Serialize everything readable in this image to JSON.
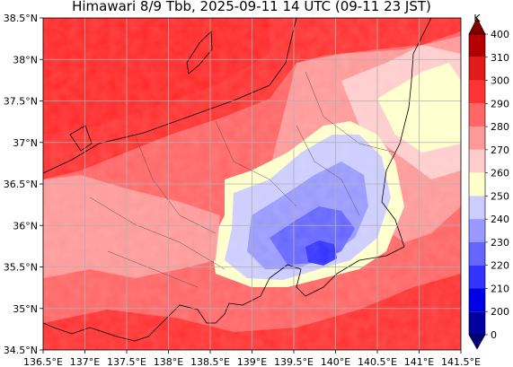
{
  "title": "Himawari 8/9 Tbb, 2025-09-11 14 UTC (09-11 23 JST)",
  "x_ticks": [
    "136.5°E",
    "137°E",
    "137.5°E",
    "138°E",
    "138.5°E",
    "139°E",
    "139.5°E",
    "140°E",
    "140.5°E",
    "141°E",
    "141.5°E"
  ],
  "y_ticks": [
    "38.5°N",
    "38°N",
    "37.5°N",
    "37°N",
    "36.5°N",
    "36°N",
    "35.5°N",
    "35°N",
    "34.5°N"
  ],
  "colorbar": {
    "unit": "K",
    "labels": [
      "400",
      "310",
      "300",
      "290",
      "280",
      "270",
      "260",
      "250",
      "240",
      "230",
      "220",
      "210",
      "200",
      "0"
    ],
    "colors": [
      "#b30000",
      "#e21a1a",
      "#ff3333",
      "#ff6666",
      "#ff9999",
      "#ffcccc",
      "#ffffcc",
      "#ccccff",
      "#9999ff",
      "#6666ff",
      "#3333ff",
      "#0000e6",
      "#0000a0"
    ],
    "colors_note_order": "top-to-bottom: 310-400, 300-310, 290-300, 280-290, 270-280, 260-270, 250-260, 240-250, 230-240, 220-230, 210-220, 200-210, 0-200"
  },
  "map": {
    "lon_range": [
      136.5,
      141.5
    ],
    "lat_range": [
      34.5,
      38.5
    ],
    "grid": true
  }
}
